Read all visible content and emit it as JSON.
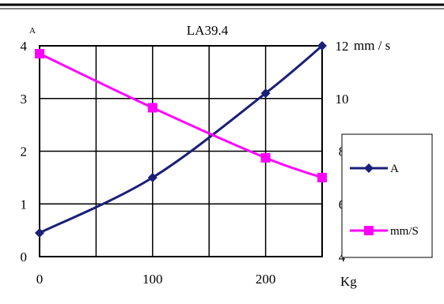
{
  "chart_data": {
    "type": "line",
    "title": "LA39.4",
    "x": [
      0,
      100,
      200,
      250
    ],
    "xlim": [
      0,
      250
    ],
    "xticks": [
      "0",
      "100",
      "200"
    ],
    "xlabel": "Kg",
    "left_axis": {
      "label": "A",
      "ylim": [
        0,
        4
      ],
      "ticks": [
        "0",
        "1",
        "2",
        "3",
        "4"
      ]
    },
    "right_axis": {
      "label": "mm / s",
      "ylim": [
        4,
        12
      ],
      "ticks": [
        "4",
        "6",
        "8",
        "10",
        "12"
      ]
    },
    "grid": true,
    "legend_position": "right",
    "series": [
      {
        "name": "A",
        "axis": "left",
        "color": "#1a1f78",
        "marker": "diamond",
        "values": [
          0.45,
          1.5,
          3.1,
          4.0
        ]
      },
      {
        "name": "mm/S",
        "axis": "right",
        "color": "#ff00ff",
        "marker": "square",
        "values": [
          11.7,
          9.65,
          7.75,
          7.0
        ]
      }
    ]
  }
}
